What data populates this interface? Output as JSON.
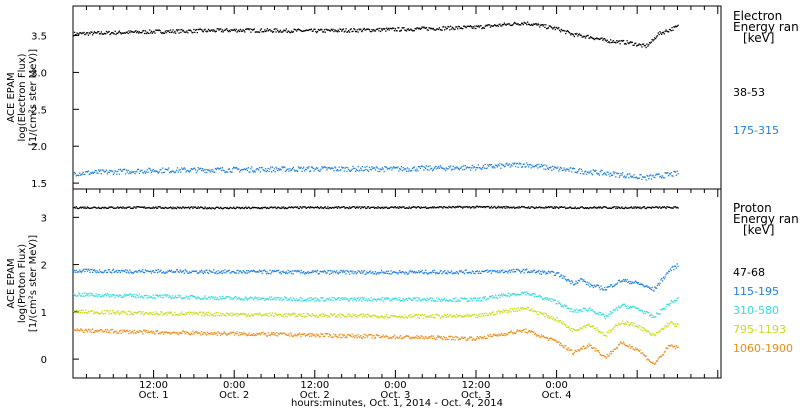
{
  "chart_data": [
    {
      "type": "scatter",
      "panel": "electron",
      "ylabel_lines": [
        "ACE EPAM",
        "log(Electron Flux)",
        "[1/(cm²s ster MeV)]"
      ],
      "ylim": [
        1.42,
        3.9
      ],
      "yticks": [
        "1.5",
        "2.0",
        "2.5",
        "3.0",
        "3.5"
      ],
      "ytick_values": [
        1.5,
        2.0,
        2.5,
        3.0,
        3.5
      ],
      "legend_title": [
        "Electron",
        "Energy ran",
        "[keV]"
      ],
      "series": [
        {
          "name": "38-53",
          "color": "#000000",
          "x": [
            0,
            0.5,
            1,
            1.5,
            2,
            2.5,
            2.8,
            3.0,
            3.1,
            3.2,
            3.3,
            3.45,
            3.55,
            3.6,
            3.62,
            3.75
          ],
          "y": [
            3.53,
            3.56,
            3.58,
            3.57,
            3.59,
            3.62,
            3.68,
            3.6,
            3.52,
            3.49,
            3.44,
            3.41,
            3.36,
            3.45,
            3.52,
            3.63
          ]
        },
        {
          "name": "175-315",
          "color": "#1f7fe0",
          "x": [
            0,
            0.5,
            1,
            1.5,
            2,
            2.5,
            2.8,
            3.0,
            3.2,
            3.4,
            3.55,
            3.62,
            3.75
          ],
          "y": [
            1.64,
            1.68,
            1.69,
            1.7,
            1.7,
            1.72,
            1.76,
            1.7,
            1.66,
            1.62,
            1.58,
            1.6,
            1.64
          ]
        }
      ]
    },
    {
      "type": "scatter",
      "panel": "proton",
      "ylabel_lines": [
        "ACE EPAM",
        "log(Proton Flux)",
        "[1/(cm²s ster MeV)]"
      ],
      "ylim": [
        -0.4,
        3.6
      ],
      "yticks": [
        "0",
        "1",
        "2",
        "3"
      ],
      "ytick_values": [
        0,
        1,
        2,
        3
      ],
      "legend_title": [
        "Proton",
        "Energy ran",
        "[keV]"
      ],
      "series": [
        {
          "name": "47-68",
          "color": "#000000",
          "x": [
            0,
            0.5,
            1,
            1.5,
            2,
            2.5,
            3.0,
            3.5,
            3.75
          ],
          "y": [
            3.22,
            3.22,
            3.21,
            3.22,
            3.22,
            3.23,
            3.22,
            3.22,
            3.22
          ]
        },
        {
          "name": "115-195",
          "color": "#1f7fe0",
          "x": [
            0,
            0.5,
            1,
            1.5,
            2,
            2.5,
            2.8,
            3.0,
            3.1,
            3.15,
            3.2,
            3.3,
            3.4,
            3.5,
            3.6,
            3.7,
            3.75
          ],
          "y": [
            1.88,
            1.87,
            1.86,
            1.85,
            1.85,
            1.86,
            1.88,
            1.82,
            1.62,
            1.7,
            1.58,
            1.5,
            1.68,
            1.62,
            1.48,
            1.9,
            2.0
          ]
        },
        {
          "name": "310-580",
          "color": "#33dcdc",
          "x": [
            0,
            0.5,
            1,
            1.5,
            2,
            2.5,
            2.8,
            3.0,
            3.1,
            3.2,
            3.3,
            3.4,
            3.5,
            3.6,
            3.7,
            3.75
          ],
          "y": [
            1.38,
            1.34,
            1.3,
            1.28,
            1.28,
            1.27,
            1.42,
            1.22,
            1.02,
            1.08,
            0.9,
            1.15,
            1.08,
            0.9,
            1.2,
            1.28
          ]
        },
        {
          "name": "795-1193",
          "color": "#c8dc14",
          "x": [
            0,
            0.5,
            1,
            1.5,
            2,
            2.5,
            2.8,
            3.0,
            3.1,
            3.2,
            3.3,
            3.4,
            3.5,
            3.6,
            3.7,
            3.75
          ],
          "y": [
            1.02,
            0.98,
            0.96,
            0.94,
            0.92,
            0.92,
            1.1,
            0.85,
            0.62,
            0.75,
            0.52,
            0.8,
            0.72,
            0.5,
            0.78,
            0.72
          ]
        },
        {
          "name": "1060-1900",
          "color": "#ee8a14",
          "x": [
            0,
            0.5,
            1,
            1.5,
            2,
            2.5,
            2.8,
            3.0,
            3.1,
            3.2,
            3.3,
            3.4,
            3.5,
            3.6,
            3.7,
            3.75
          ],
          "y": [
            0.62,
            0.58,
            0.55,
            0.52,
            0.48,
            0.45,
            0.62,
            0.38,
            0.15,
            0.32,
            0.05,
            0.35,
            0.22,
            -0.1,
            0.3,
            0.25
          ]
        }
      ]
    }
  ],
  "x_axis": {
    "unit": "days from Oct. 1, 2014 00:00",
    "range": [
      0,
      4.02
    ],
    "ticks": [
      {
        "x": 0.5,
        "time": "12:00",
        "day": "Oct. 1"
      },
      {
        "x": 1.0,
        "time": "0:00",
        "day": "Oct. 2"
      },
      {
        "x": 1.5,
        "time": "12:00",
        "day": "Oct. 2"
      },
      {
        "x": 2.0,
        "time": "0:00",
        "day": "Oct. 3"
      },
      {
        "x": 2.5,
        "time": "12:00",
        "day": "Oct. 3"
      },
      {
        "x": 3.0,
        "time": "0:00",
        "day": "Oct. 4"
      }
    ],
    "title": "hours:minutes, Oct.  1, 2014 - Oct.  4, 2014"
  }
}
